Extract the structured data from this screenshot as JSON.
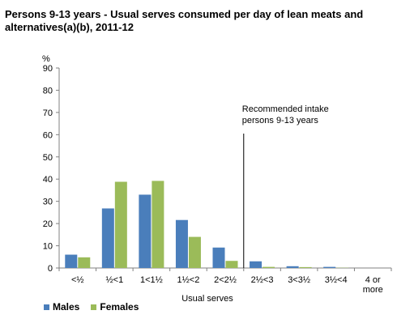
{
  "chart_data": {
    "type": "bar",
    "title": "Persons 9-13 years - Usual serves consumed per day of lean meats and alternatives(a)(b), 2011-12",
    "xlabel": "Usual serves",
    "ylabel": "%",
    "ylim": [
      0,
      90
    ],
    "yticks": [
      "0",
      "10",
      "20",
      "30",
      "40",
      "50",
      "60",
      "70",
      "80",
      "90"
    ],
    "categories": [
      "<½",
      "½<1",
      "1<1½",
      "1½<2",
      "2<2½",
      "2½<3",
      "3<3½",
      "3½<4",
      "4 or more"
    ],
    "series": [
      {
        "name": "Males",
        "color": "#4a7ebb",
        "values": [
          6.0,
          26.8,
          33.0,
          21.6,
          9.2,
          3.0,
          0.8,
          0.5,
          0.0
        ]
      },
      {
        "name": "Females",
        "color": "#9bbb59",
        "values": [
          4.8,
          38.8,
          39.2,
          14.0,
          3.2,
          0.5,
          0.4,
          0.1,
          0.0
        ]
      }
    ],
    "annotation": {
      "text_lines": [
        "Recommended intake",
        "persons 9-13 years"
      ],
      "between_categories": [
        "2<2½",
        "2½<3"
      ]
    },
    "grid": false,
    "legend": "bottom-left"
  }
}
